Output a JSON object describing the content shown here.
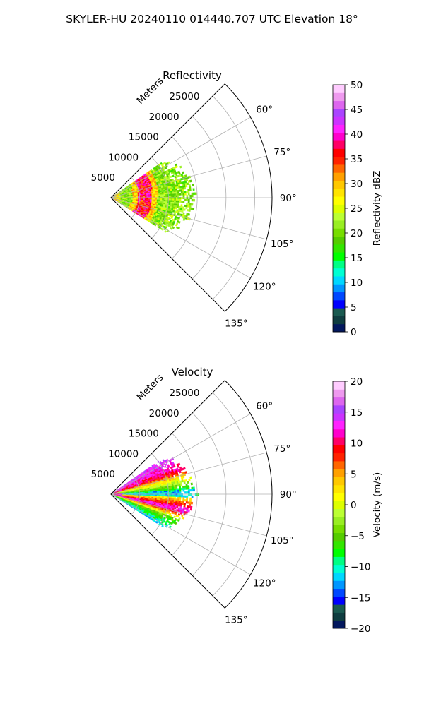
{
  "figure": {
    "suptitle": "SKYLER-HU  20240110  014440.707 UTC Elevation 18°"
  },
  "chart_data": [
    {
      "type": "heatmap",
      "title": "Reflectivity",
      "projection": "polar-sector",
      "radial_axis_label": "Meters",
      "radial_ticks": [
        "5000",
        "10000",
        "15000",
        "20000",
        "25000"
      ],
      "radial_range": [
        0,
        28000
      ],
      "angle_ticks": [
        "60°",
        "75°",
        "90°",
        "105°",
        "120°",
        "135°"
      ],
      "angle_range_deg": [
        45,
        135
      ],
      "grid": true,
      "colorbar": {
        "label": "Reflectivity dBZ",
        "range": [
          0,
          50
        ],
        "ticks": [
          "0",
          "5",
          "10",
          "15",
          "20",
          "25",
          "30",
          "35",
          "40",
          "45",
          "50"
        ],
        "colors": [
          "#03185e",
          "#0f3d40",
          "#1a5a50",
          "#0000ff",
          "#0048ff",
          "#0096ff",
          "#00d7ff",
          "#00ffd2",
          "#00ff84",
          "#00ff00",
          "#33e600",
          "#55cc00",
          "#77dd00",
          "#99ee22",
          "#bbff33",
          "#ddff00",
          "#ffff00",
          "#ffe400",
          "#ffc800",
          "#ffa000",
          "#ff6600",
          "#ff2200",
          "#ff0000",
          "#ff0066",
          "#ff00cc",
          "#ff22ff",
          "#cc33ff",
          "#aa44ff",
          "#dd66ee",
          "#ee99ee",
          "#ffccff"
        ]
      },
      "echo_extent_m": [
        500,
        15000
      ],
      "echo_angles_deg": [
        55,
        122
      ],
      "features": "Weak echo (15–25 dBZ, green/yellow) fills the sector; an arc of enhanced reflectivity (30–40 dBZ, red/magenta) sits at about 5000–6500 m range."
    },
    {
      "type": "heatmap",
      "title": "Velocity",
      "projection": "polar-sector",
      "radial_axis_label": "Meters",
      "radial_ticks": [
        "5000",
        "10000",
        "15000",
        "20000",
        "25000"
      ],
      "radial_range": [
        0,
        28000
      ],
      "angle_ticks": [
        "60°",
        "75°",
        "90°",
        "105°",
        "120°",
        "135°"
      ],
      "angle_range_deg": [
        45,
        135
      ],
      "grid": true,
      "colorbar": {
        "label": "Velocity (m/s)",
        "range": [
          -20,
          20
        ],
        "ticks": [
          "−20",
          "−15",
          "−10",
          "−5",
          "0",
          "5",
          "10",
          "15",
          "20"
        ],
        "colors": [
          "#03185e",
          "#0f3d40",
          "#1a5a50",
          "#0000ff",
          "#0048ff",
          "#0096ff",
          "#00d7ff",
          "#00ffd2",
          "#00ff84",
          "#00ff00",
          "#33e600",
          "#55cc00",
          "#77dd00",
          "#99ee22",
          "#bbff33",
          "#ddff00",
          "#ffff00",
          "#ffe400",
          "#ffc800",
          "#ffa000",
          "#ff6600",
          "#ff2200",
          "#ff0000",
          "#ff0066",
          "#ff00cc",
          "#ff22ff",
          "#cc33ff",
          "#aa44ff",
          "#dd66ee",
          "#ee99ee",
          "#ffccff"
        ]
      },
      "echo_extent_m": [
        500,
        15000
      ],
      "echo_angles_deg": [
        55,
        122
      ],
      "features": "Velocity rises with azimuth from about −10 m/s near 85–90° (cyan/blue band) to about +10–15 m/s (red/magenta) near 60° and again near 100°, falling toward −10 m/s beyond 110°."
    }
  ]
}
